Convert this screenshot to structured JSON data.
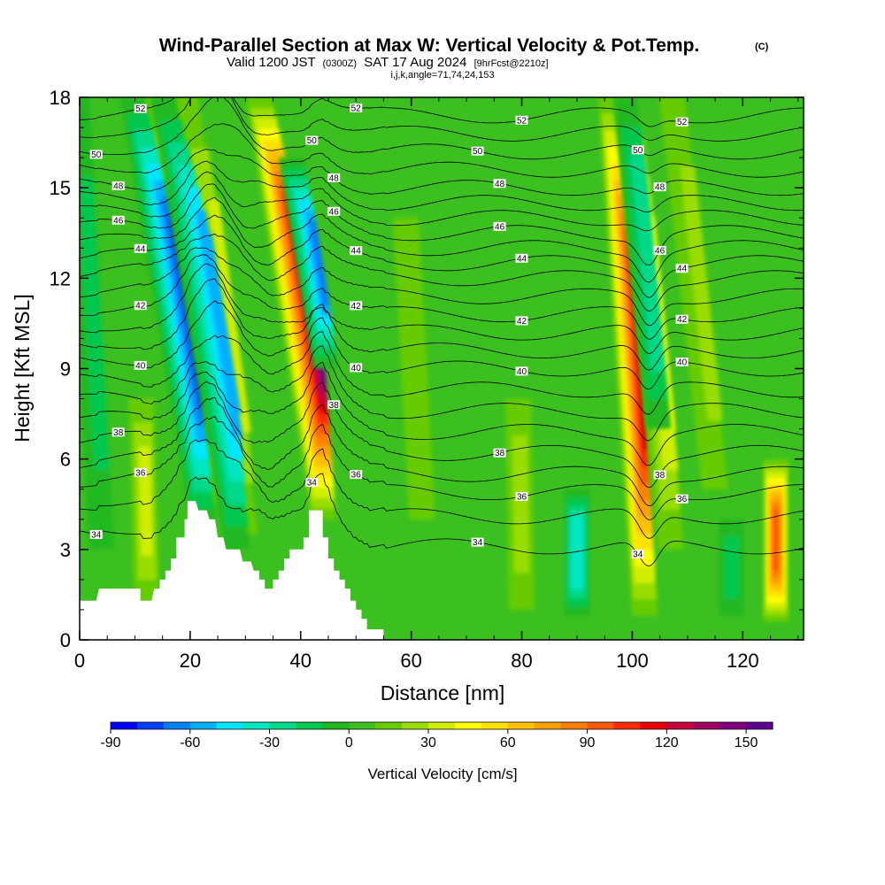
{
  "header": {
    "title_main": "Wind-Parallel Section at Max W: Vertical Velocity & Pot.Temp.",
    "title_mark": "(C)",
    "valid_a": "Valid 1200 JST",
    "valid_b": "(0300Z)",
    "valid_c": "SAT 17 Aug 2024",
    "valid_d": "[9hrFcst@2210z]",
    "indices": "i,j,k,angle=71,74,24,153"
  },
  "chart_data": {
    "type": "heatmap",
    "xlabel": "Distance [nm]",
    "ylabel": "Height [Kft MSL]",
    "xlim": [
      0,
      131
    ],
    "ylim": [
      0,
      18
    ],
    "xticks": [
      "0",
      "20",
      "40",
      "60",
      "80",
      "100",
      "120"
    ],
    "yticks": [
      "0",
      "3",
      "6",
      "9",
      "12",
      "15",
      "18"
    ],
    "field": "Vertical Velocity",
    "contour_field": "Potential Temperature",
    "background_level_cm_s": 5,
    "updrafts": [
      {
        "x": 44.2,
        "ybot": 4,
        "ytop": 18,
        "peak_cm_s": 140,
        "lean": 0.28
      },
      {
        "x": 102.3,
        "ybot": 0.8,
        "ytop": 18,
        "peak_cm_s": 110,
        "lean": 0.12
      },
      {
        "x": 126,
        "ybot": 0.6,
        "ytop": 6,
        "peak_cm_s": 90,
        "lean": 0
      },
      {
        "x": 23.2,
        "ybot": 4.5,
        "ytop": 18,
        "peak_cm_s": 45,
        "lean": 0.28
      },
      {
        "x": 30.0,
        "ybot": 3.5,
        "ytop": 18,
        "peak_cm_s": 30,
        "lean": 0.25
      },
      {
        "x": 12.2,
        "ybot": 1.2,
        "ytop": 8,
        "peak_cm_s": 30,
        "lean": 0.05
      },
      {
        "x": 107,
        "ybot": 3,
        "ytop": 18,
        "peak_cm_s": 40,
        "lean": 0.18
      },
      {
        "x": 115,
        "ybot": 5,
        "ytop": 18,
        "peak_cm_s": 25,
        "lean": 0.2
      },
      {
        "x": 80,
        "ybot": 1,
        "ytop": 8,
        "peak_cm_s": 20,
        "lean": 0.03
      },
      {
        "x": 62,
        "ybot": 4,
        "ytop": 14,
        "peak_cm_s": 15,
        "lean": 0.1
      }
    ],
    "downdrafts": [
      {
        "x": 22.4,
        "ybot": 3.8,
        "ytop": 18,
        "peak_cm_s": -80,
        "lean": 0.3
      },
      {
        "x": 28.6,
        "ybot": 3.0,
        "ytop": 18,
        "peak_cm_s": -60,
        "lean": 0.3
      },
      {
        "x": 44.6,
        "ybot": 9,
        "ytop": 16,
        "peak_cm_s": -65,
        "lean": 0.3
      },
      {
        "x": 90,
        "ybot": 0.8,
        "ytop": 5,
        "peak_cm_s": -40,
        "lean": 0
      },
      {
        "x": 104.8,
        "ybot": 7,
        "ytop": 18,
        "peak_cm_s": -30,
        "lean": 0.18
      },
      {
        "x": 118,
        "ybot": 0.8,
        "ytop": 4,
        "peak_cm_s": -15,
        "lean": 0
      },
      {
        "x": 4,
        "ybot": 3,
        "ytop": 18,
        "peak_cm_s": -12,
        "lean": 0.1
      }
    ],
    "terrain_kft": [
      [
        0,
        1.3
      ],
      [
        3,
        1.3
      ],
      [
        3.5,
        1.7
      ],
      [
        11,
        1.7
      ],
      [
        11,
        1.3
      ],
      [
        13,
        1.3
      ],
      [
        13.5,
        1.7
      ],
      [
        14.5,
        1.7
      ],
      [
        14.5,
        2.0
      ],
      [
        15.5,
        2.0
      ],
      [
        15.5,
        2.3
      ],
      [
        16.5,
        2.3
      ],
      [
        16.5,
        2.7
      ],
      [
        17.5,
        2.7
      ],
      [
        17.5,
        3.4
      ],
      [
        19,
        3.4
      ],
      [
        19,
        4.0
      ],
      [
        19.5,
        4.0
      ],
      [
        19.5,
        4.6
      ],
      [
        21,
        4.6
      ],
      [
        21.5,
        4.3
      ],
      [
        23,
        4.3
      ],
      [
        23.5,
        4.0
      ],
      [
        24.5,
        4.0
      ],
      [
        25,
        3.4
      ],
      [
        26,
        3.4
      ],
      [
        26.5,
        3.0
      ],
      [
        29,
        3.0
      ],
      [
        29.5,
        2.6
      ],
      [
        31,
        2.6
      ],
      [
        31.5,
        2.3
      ],
      [
        32.5,
        2.3
      ],
      [
        32.5,
        2.0
      ],
      [
        33.5,
        2.0
      ],
      [
        33.5,
        1.7
      ],
      [
        35,
        1.7
      ],
      [
        35,
        2.0
      ],
      [
        36,
        2.0
      ],
      [
        36,
        2.3
      ],
      [
        37,
        2.3
      ],
      [
        37,
        2.7
      ],
      [
        38,
        2.7
      ],
      [
        38,
        3.0
      ],
      [
        40.5,
        3.0
      ],
      [
        40.5,
        3.4
      ],
      [
        41.5,
        3.4
      ],
      [
        41.5,
        4.3
      ],
      [
        44,
        4.3
      ],
      [
        44,
        3.4
      ],
      [
        45,
        3.4
      ],
      [
        45,
        2.7
      ],
      [
        46,
        2.7
      ],
      [
        46,
        2.3
      ],
      [
        47,
        2.3
      ],
      [
        47,
        2.0
      ],
      [
        48,
        2.0
      ],
      [
        48,
        1.7
      ],
      [
        49,
        1.7
      ],
      [
        49,
        1.3
      ],
      [
        50,
        1.3
      ],
      [
        50,
        1.0
      ],
      [
        51,
        1.0
      ],
      [
        51,
        0.7
      ],
      [
        52,
        0.7
      ],
      [
        52,
        0.35
      ],
      [
        55,
        0.35
      ],
      [
        55,
        0
      ]
    ],
    "theta_contours": [
      {
        "base": 3.1,
        "label": "34"
      },
      {
        "base": 4.1,
        "label": ""
      },
      {
        "base": 4.9,
        "label": "36"
      },
      {
        "base": 5.5,
        "label": ""
      },
      {
        "base": 6.2,
        "label": "38"
      },
      {
        "base": 6.9,
        "label": ""
      },
      {
        "base": 7.6,
        "label": ""
      },
      {
        "base": 8.3,
        "label": ""
      },
      {
        "base": 9.0,
        "label": "40"
      },
      {
        "base": 9.6,
        "label": ""
      },
      {
        "base": 10.2,
        "label": ""
      },
      {
        "base": 10.8,
        "label": "42"
      },
      {
        "base": 11.4,
        "label": ""
      },
      {
        "base": 12.0,
        "label": ""
      },
      {
        "base": 12.5,
        "label": "44"
      },
      {
        "base": 13.0,
        "label": ""
      },
      {
        "base": 13.5,
        "label": "46"
      },
      {
        "base": 14.0,
        "label": ""
      },
      {
        "base": 14.5,
        "label": ""
      },
      {
        "base": 15.0,
        "label": "48"
      },
      {
        "base": 15.6,
        "label": ""
      },
      {
        "base": 16.2,
        "label": "50"
      },
      {
        "base": 16.8,
        "label": ""
      },
      {
        "base": 17.4,
        "label": "52"
      }
    ],
    "colorbar": {
      "label": "Vertical Velocity [cm/s]",
      "min": -90,
      "max": 160,
      "step": 10,
      "ticks": [
        "-90",
        "-60",
        "-30",
        "0",
        "30",
        "60",
        "90",
        "120",
        "150"
      ],
      "colors": [
        "#0000ff",
        "#0040ff",
        "#0080ff",
        "#00b0ff",
        "#00e6ff",
        "#00e6c0",
        "#00d88a",
        "#00c850",
        "#20b820",
        "#3cc020",
        "#66cc00",
        "#99dd00",
        "#d0ee00",
        "#ffff00",
        "#ffe000",
        "#ffc000",
        "#ffa000",
        "#ff8000",
        "#ff5a00",
        "#ff2a00",
        "#e80000",
        "#c80040",
        "#a00060",
        "#800080",
        "#600090"
      ]
    }
  }
}
